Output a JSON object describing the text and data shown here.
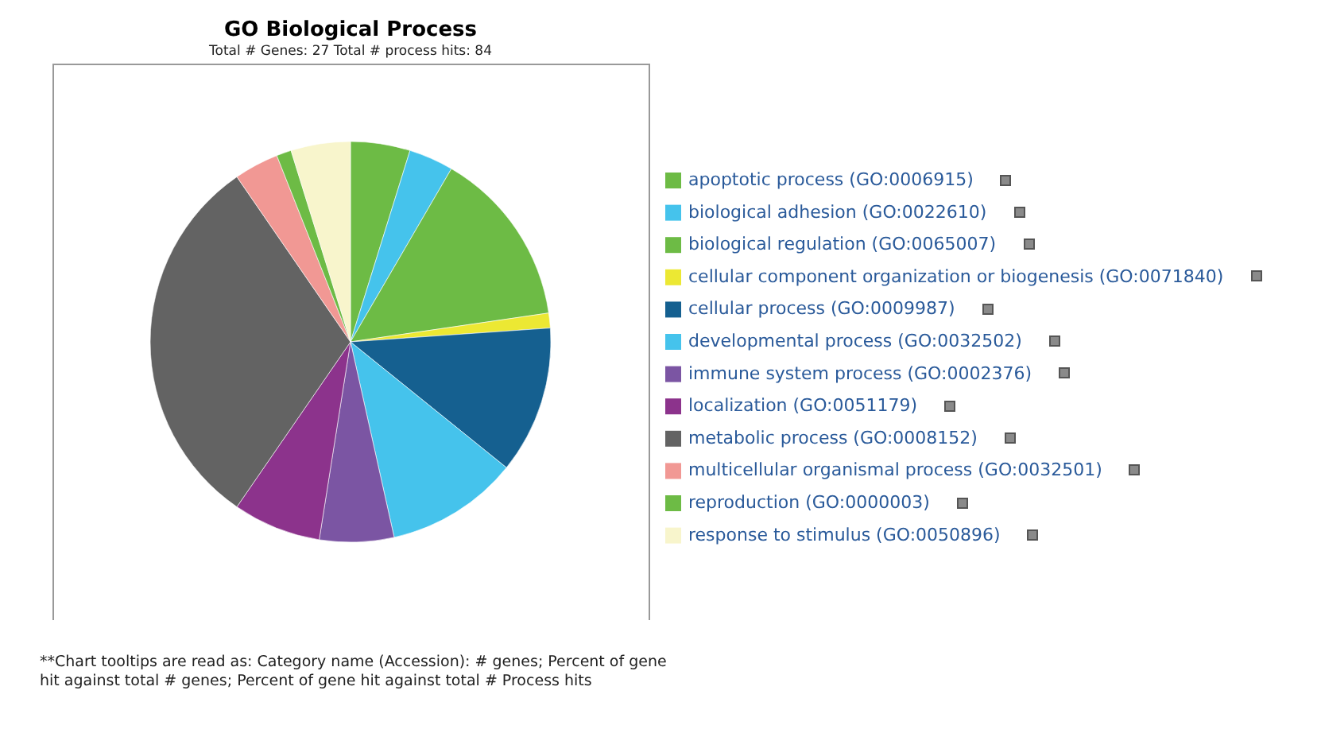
{
  "chart_data": {
    "type": "pie",
    "title": "GO Biological Process",
    "subtitle": "Total # Genes: 27    Total # process hits: 84",
    "categories": [
      "apoptotic process (GO:0006915)",
      "biological adhesion (GO:0022610)",
      "biological regulation (GO:0065007)",
      "cellular component organization or biogenesis (GO:0071840)",
      "cellular process (GO:0009987)",
      "developmental process (GO:0032502)",
      "immune system process (GO:0002376)",
      "localization (GO:0051179)",
      "metabolic process (GO:0008152)",
      "multicellular organismal process (GO:0032501)",
      "reproduction (GO:0000003)",
      "response to stimulus (GO:0050896)"
    ],
    "values": [
      4.8,
      3.6,
      14.3,
      1.2,
      11.9,
      10.7,
      6.0,
      7.1,
      30.8,
      3.6,
      1.2,
      4.8
    ],
    "colors": [
      "#6dbb45",
      "#45c3ec",
      "#6dbb45",
      "#ece833",
      "#156090",
      "#45c3ec",
      "#7b55a3",
      "#8c338c",
      "#636363",
      "#f19894",
      "#6dbb45",
      "#f8f5cc"
    ],
    "legend": "right",
    "annotations": [
      "**Chart tooltips are read as: Category name (Accession): # genes; Percent of gene hit against total # genes; Percent of gene hit against total # Process hits"
    ]
  }
}
